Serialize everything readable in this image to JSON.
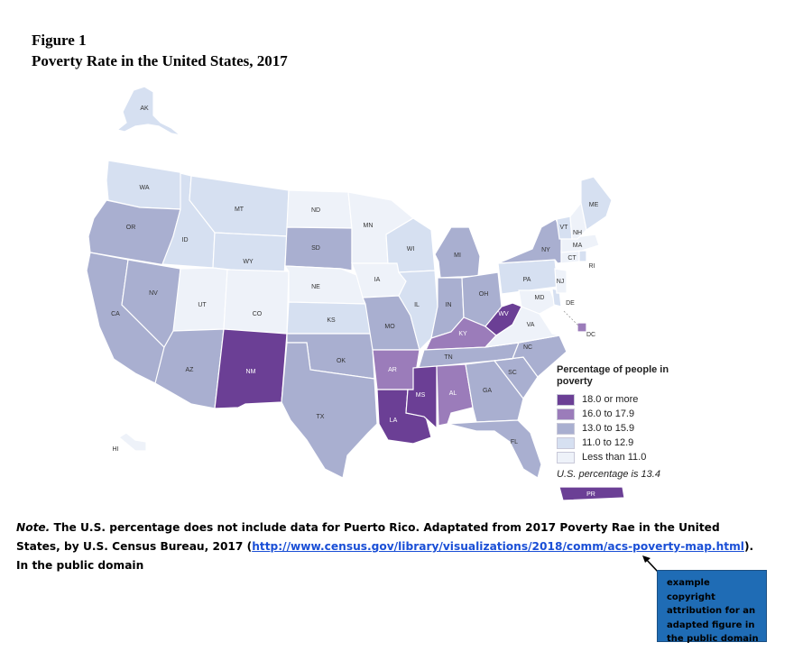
{
  "figure": {
    "label": "Figure 1",
    "title": "Poverty Rate in the United States, 2017"
  },
  "legend": {
    "title": "Percentage of people in poverty",
    "items": [
      {
        "label": "18.0 or more",
        "color": "#6b3f95"
      },
      {
        "label": "16.0 to 17.9",
        "color": "#9b7cba"
      },
      {
        "label": "13.0 to 15.9",
        "color": "#a9afd0"
      },
      {
        "label": "11.0 to 12.9",
        "color": "#d6e0f1"
      },
      {
        "label": "Less than 11.0",
        "color": "#eef2f9"
      }
    ],
    "note": "U.S. percentage is 13.4"
  },
  "map_data": {
    "states": [
      {
        "abbr": "AK",
        "class": 3
      },
      {
        "abbr": "WA",
        "class": 3
      },
      {
        "abbr": "OR",
        "class": 2
      },
      {
        "abbr": "CA",
        "class": 2
      },
      {
        "abbr": "NV",
        "class": 2
      },
      {
        "abbr": "ID",
        "class": 3
      },
      {
        "abbr": "MT",
        "class": 3
      },
      {
        "abbr": "WY",
        "class": 3
      },
      {
        "abbr": "UT",
        "class": 4
      },
      {
        "abbr": "CO",
        "class": 4
      },
      {
        "abbr": "AZ",
        "class": 2
      },
      {
        "abbr": "NM",
        "class": 0
      },
      {
        "abbr": "ND",
        "class": 4
      },
      {
        "abbr": "SD",
        "class": 2
      },
      {
        "abbr": "NE",
        "class": 4
      },
      {
        "abbr": "KS",
        "class": 3
      },
      {
        "abbr": "OK",
        "class": 2
      },
      {
        "abbr": "TX",
        "class": 2
      },
      {
        "abbr": "MN",
        "class": 4
      },
      {
        "abbr": "IA",
        "class": 4
      },
      {
        "abbr": "MO",
        "class": 2
      },
      {
        "abbr": "AR",
        "class": 1
      },
      {
        "abbr": "LA",
        "class": 0
      },
      {
        "abbr": "WI",
        "class": 3
      },
      {
        "abbr": "IL",
        "class": 3
      },
      {
        "abbr": "MI",
        "class": 2
      },
      {
        "abbr": "IN",
        "class": 2
      },
      {
        "abbr": "OH",
        "class": 2
      },
      {
        "abbr": "KY",
        "class": 1
      },
      {
        "abbr": "TN",
        "class": 2
      },
      {
        "abbr": "MS",
        "class": 0
      },
      {
        "abbr": "AL",
        "class": 1
      },
      {
        "abbr": "GA",
        "class": 2
      },
      {
        "abbr": "FL",
        "class": 2
      },
      {
        "abbr": "SC",
        "class": 2
      },
      {
        "abbr": "NC",
        "class": 2
      },
      {
        "abbr": "VA",
        "class": 4
      },
      {
        "abbr": "WV",
        "class": 0
      },
      {
        "abbr": "PA",
        "class": 3
      },
      {
        "abbr": "NY",
        "class": 2
      },
      {
        "abbr": "MD",
        "class": 4
      },
      {
        "abbr": "DE",
        "class": 3
      },
      {
        "abbr": "NJ",
        "class": 4
      },
      {
        "abbr": "CT",
        "class": 4
      },
      {
        "abbr": "RI",
        "class": 3
      },
      {
        "abbr": "MA",
        "class": 4
      },
      {
        "abbr": "VT",
        "class": 3
      },
      {
        "abbr": "NH",
        "class": 4
      },
      {
        "abbr": "ME",
        "class": 3
      },
      {
        "abbr": "HI",
        "class": 4
      },
      {
        "abbr": "DC",
        "class": 1
      },
      {
        "abbr": "PR",
        "class": 0
      }
    ]
  },
  "note": {
    "label": "Note.",
    "text_before_link": " The U.S. percentage does not include data for Puerto Rico. Adaptated from 2017 Poverty Rae in the United States, by U.S. Census Bureau, 2017 (",
    "link_text": "http://www.census.gov/library/visualizations/2018/comm/acs-poverty-map.html",
    "text_after_link": "). In the public domain"
  },
  "callout": {
    "text": "example copyright attribution for an adapted figure in the public domain",
    "color": "#1f6cb5"
  }
}
